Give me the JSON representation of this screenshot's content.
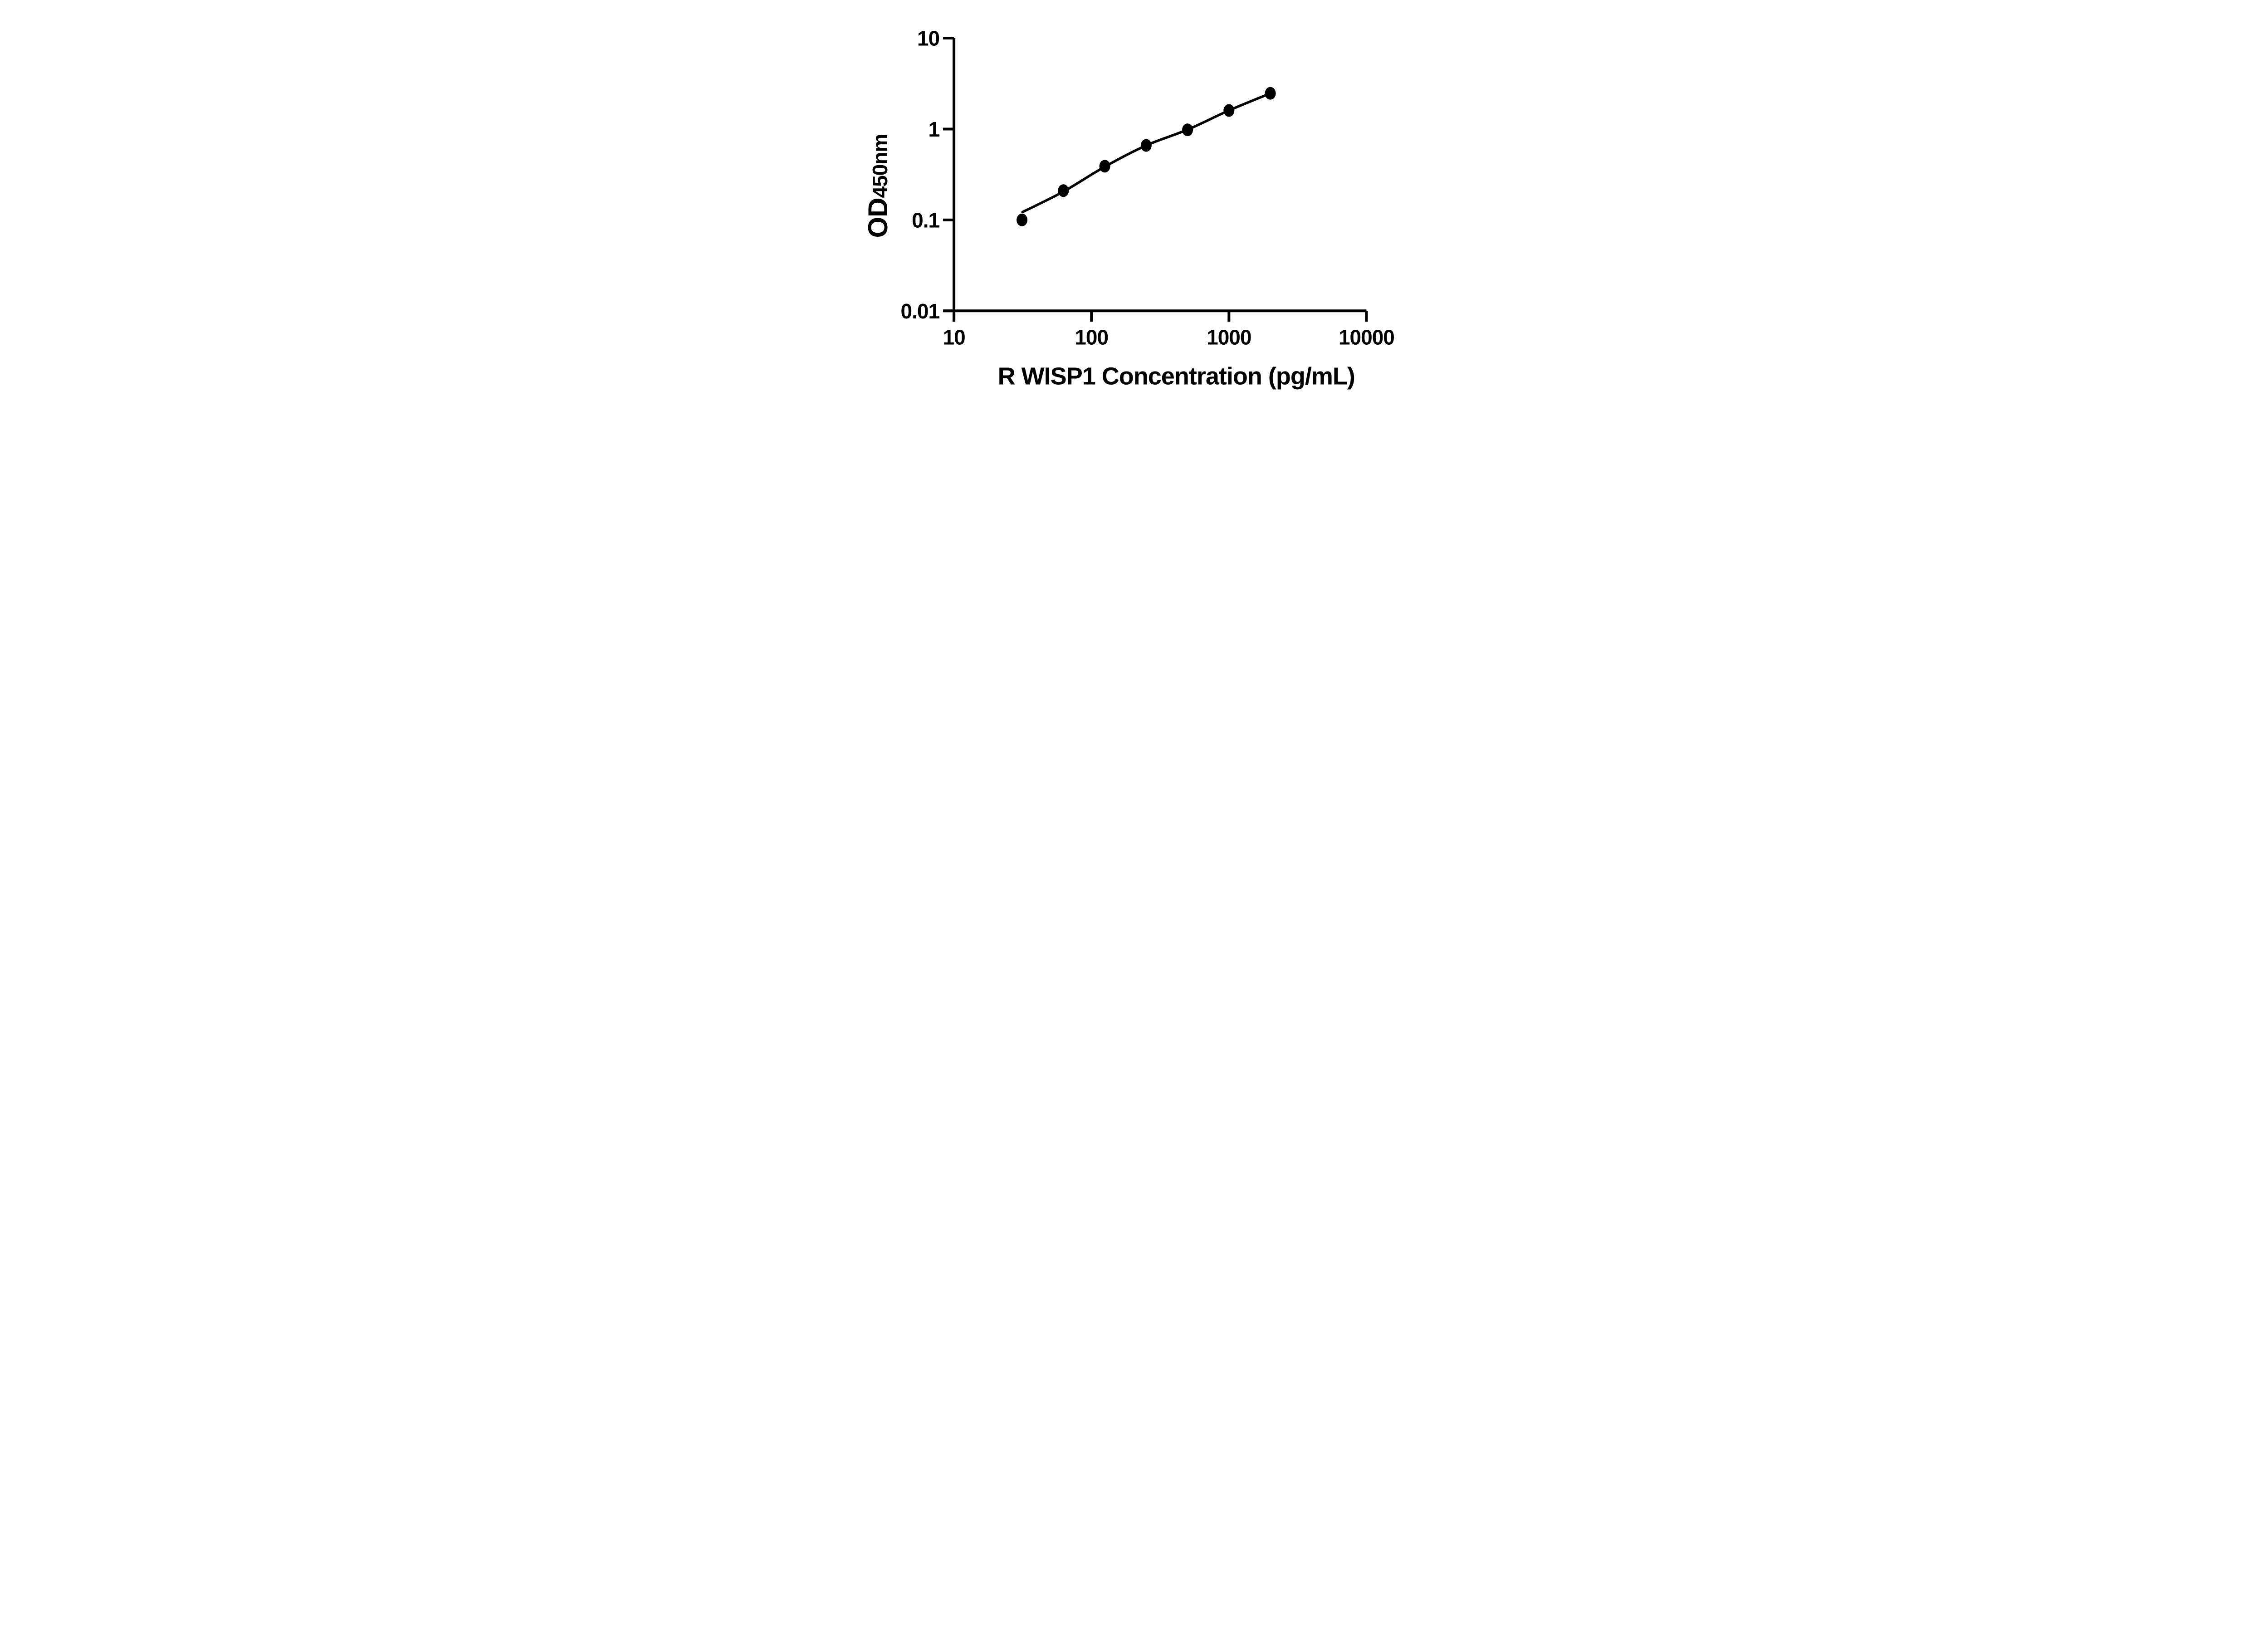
{
  "chart_data": {
    "type": "scatter",
    "title": "",
    "xlabel": "R WISP1 Concentration (pg/mL)",
    "ylabel_main": "OD",
    "ylabel_sub": "450nm",
    "x_axis": {
      "scale": "log",
      "min": 10,
      "max": 10000,
      "ticks": [
        10,
        100,
        1000,
        10000
      ],
      "tick_labels": [
        "10",
        "100",
        "1000",
        "10000"
      ]
    },
    "y_axis": {
      "scale": "log",
      "min": 0.01,
      "max": 10,
      "ticks": [
        0.01,
        0.1,
        1,
        10
      ],
      "tick_labels": [
        "0.01",
        "0.1",
        "1",
        "10"
      ]
    },
    "series": [
      {
        "name": "standard-points",
        "type": "scatter",
        "x": [
          31.25,
          62.5,
          125,
          250,
          500,
          1000,
          2000
        ],
        "y": [
          0.1,
          0.21,
          0.39,
          0.66,
          0.98,
          1.6,
          2.47
        ]
      },
      {
        "name": "fit-line",
        "type": "line",
        "x": [
          31.5,
          62.5,
          125,
          250,
          500,
          1000,
          2000
        ],
        "y": [
          0.122,
          0.205,
          0.385,
          0.66,
          0.985,
          1.6,
          2.47
        ]
      }
    ],
    "legend": "none",
    "grid": false,
    "colors": {
      "points": "#000000",
      "line": "#000000",
      "axis": "#000000",
      "background": "#ffffff"
    }
  }
}
